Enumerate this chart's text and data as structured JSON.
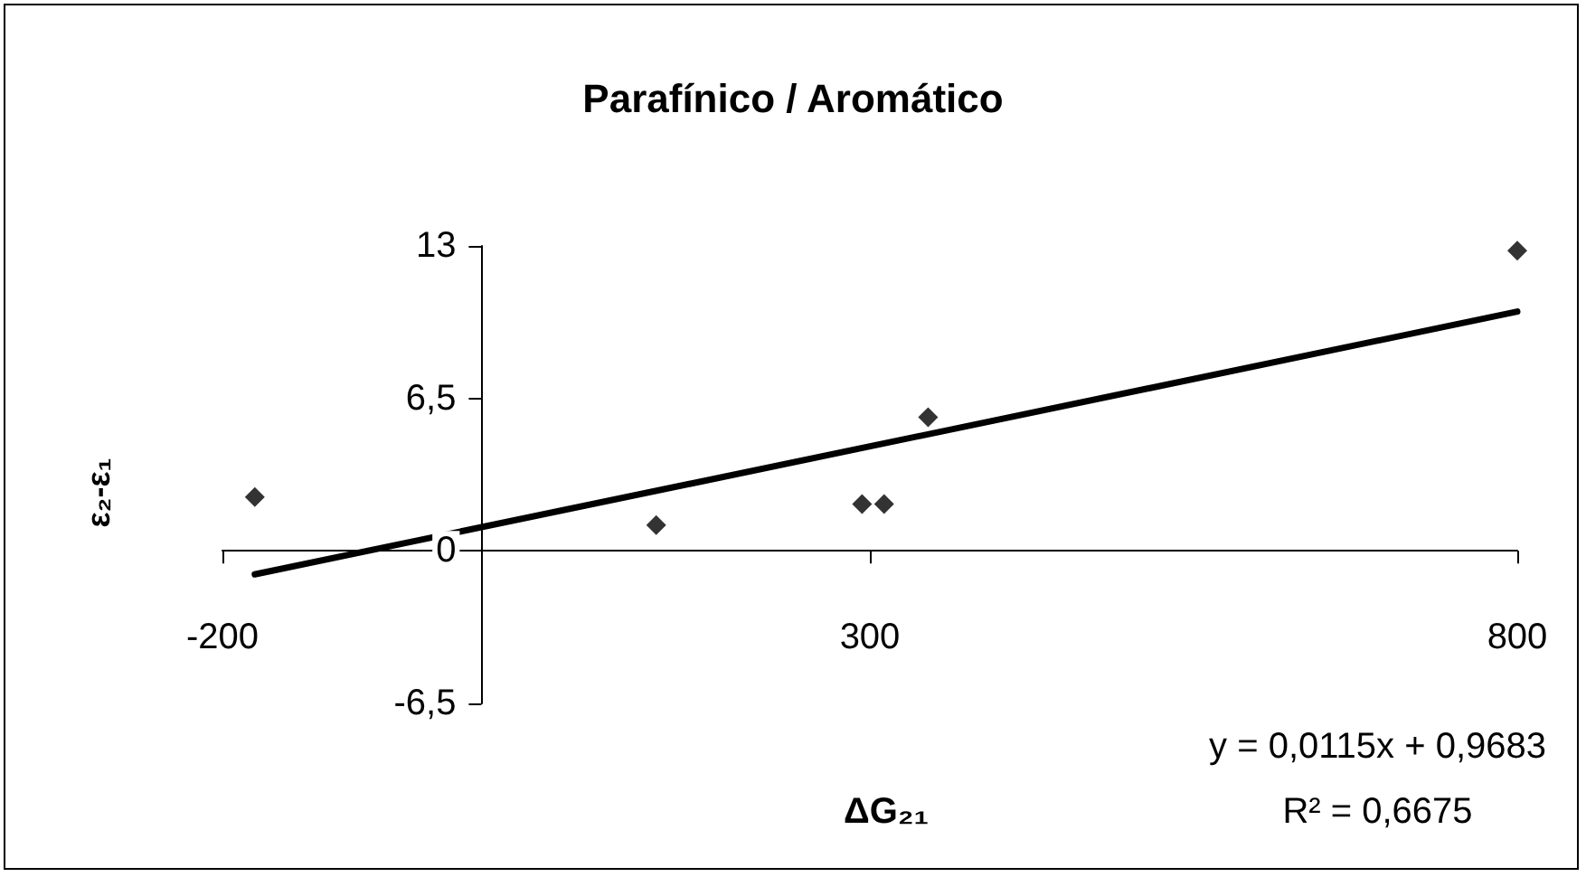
{
  "chart_data": {
    "type": "scatter",
    "title": "Parafínico / Aromático",
    "xlabel": "ΔG₂₁",
    "ylabel": "ε₂-ε₁",
    "annotations": [
      "y = 0,0115x + 0,9683",
      "R² = 0,6675"
    ],
    "xlim": [
      -200,
      800
    ],
    "xticks": [
      -200,
      300,
      800
    ],
    "ylim": [
      -6.5,
      13
    ],
    "yticks": [
      {
        "value": -6.5,
        "label": "-6,5"
      },
      0,
      {
        "value": 6.5,
        "label": "6,5"
      },
      13
    ],
    "grid": false,
    "marker": "diamond",
    "series": [
      {
        "color": "#000000",
        "x": [
          -175,
          135,
          294,
          311,
          345,
          800
        ],
        "values": [
          2.3,
          1.1,
          2.0,
          2.0,
          5.7,
          12.8
        ]
      },
      {
        "type": "line",
        "color": "#000000",
        "marker": "none",
        "line_style": "solid",
        "x": [
          -175,
          800
        ],
        "values": [
          -1.0,
          10.2
        ]
      }
    ]
  }
}
